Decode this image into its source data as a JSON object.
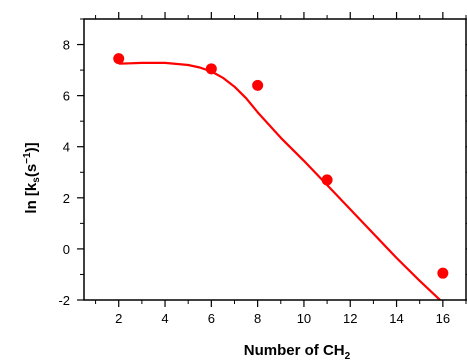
{
  "chart_data": {
    "type": "scatter",
    "xlabel": "Number of CH",
    "xlabel_subscript": "2",
    "ylabel_parts": [
      "ln  [k",
      "s",
      "(s",
      "−1",
      ")]"
    ],
    "xlim": [
      0.5,
      17
    ],
    "ylim": [
      -2,
      9
    ],
    "xticks": [
      2,
      4,
      6,
      8,
      10,
      12,
      14,
      16
    ],
    "yticks": [
      -2,
      0,
      2,
      4,
      6,
      8
    ],
    "xtick_labels": [
      "2",
      "4",
      "6",
      "8",
      "10",
      "12",
      "14",
      "16"
    ],
    "ytick_labels": [
      "-2",
      "0",
      "2",
      "4",
      "6",
      "8"
    ],
    "grid": false,
    "colors": {
      "data": "#ff0000",
      "axes": "#000000"
    },
    "series": [
      {
        "kind": "points",
        "x": [
          2,
          6,
          8,
          11,
          16
        ],
        "y": [
          7.45,
          7.05,
          6.4,
          2.7,
          -0.95
        ]
      },
      {
        "kind": "fit-line",
        "x": [
          2,
          3,
          4,
          5,
          5.5,
          6,
          6.5,
          7,
          7.5,
          8,
          9,
          10,
          11,
          12,
          13,
          14,
          15,
          16,
          16.8
        ],
        "y": [
          7.25,
          7.28,
          7.28,
          7.2,
          7.1,
          6.95,
          6.7,
          6.35,
          5.9,
          5.35,
          4.35,
          3.45,
          2.5,
          1.55,
          0.6,
          -0.35,
          -1.25,
          -2.1,
          -2.8
        ]
      }
    ]
  }
}
